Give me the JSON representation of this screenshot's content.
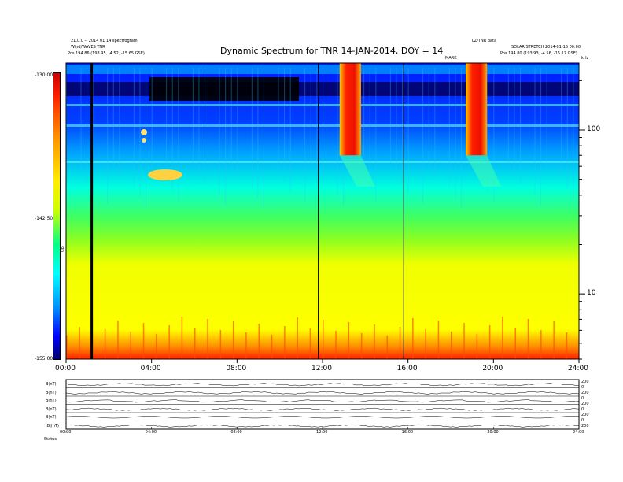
{
  "header": {
    "title": "Dynamic Spectrum for TNR 14-JAN-2014, DOY = 14",
    "left_line1": "21.0.0 -- 2014 01 14 spectrogram",
    "left_line2": "Wind/WAVES TNR",
    "left_pos_prefix": "Pos",
    "left_pos_value": "194.86 (193.95, -4.52, -15.65 GSE)",
    "right_line1": "LZ/TNR data",
    "right_line2": "SOLAR STRETCH 2014-01-15 00:00",
    "right_pos_prefix": "Pos",
    "right_pos_value": "194.80 (193.93, -4.56, -15.17 GSE)",
    "mid_tag": "MARK",
    "right_tag": "kHz"
  },
  "colorbar": {
    "top": "-130.00",
    "mid": "-142.50",
    "bottom": "-155.00",
    "unit": "dB"
  },
  "chart_data": {
    "type": "heatmap",
    "title": "Dynamic Spectrum for TNR 14-JAN-2014, DOY = 14",
    "x_ticks": [
      "00:00",
      "04:00",
      "08:00",
      "12:00",
      "16:00",
      "20:00",
      "24:00"
    ],
    "xlim_hours": [
      0,
      24
    ],
    "y_scale": "log",
    "y_ticks": [
      100,
      10
    ],
    "ylim_khz": [
      4,
      256
    ],
    "colorbar_range_db": [
      -155.0,
      -130.0
    ],
    "bursts": [
      {
        "start_hour": 12.8,
        "end_hour": 13.8,
        "min_khz": 70
      },
      {
        "start_hour": 18.7,
        "end_hour": 19.7,
        "min_khz": 70
      }
    ],
    "vertical_lines_hours": [
      1.2,
      11.8,
      15.8
    ]
  },
  "panels": {
    "labels": [
      "B(nT)",
      "B(nT)",
      "B(nT)",
      "B(nT)",
      "B(nT)",
      "|B|(nT)"
    ],
    "right_scale": [
      "200",
      "0",
      "200",
      "0",
      "200",
      "0",
      "200",
      "0",
      "200"
    ],
    "footer_label": "Status",
    "x_ticks": [
      "00:00",
      "04:00",
      "08:00",
      "12:00",
      "16:00",
      "20:00",
      "24:00"
    ]
  }
}
